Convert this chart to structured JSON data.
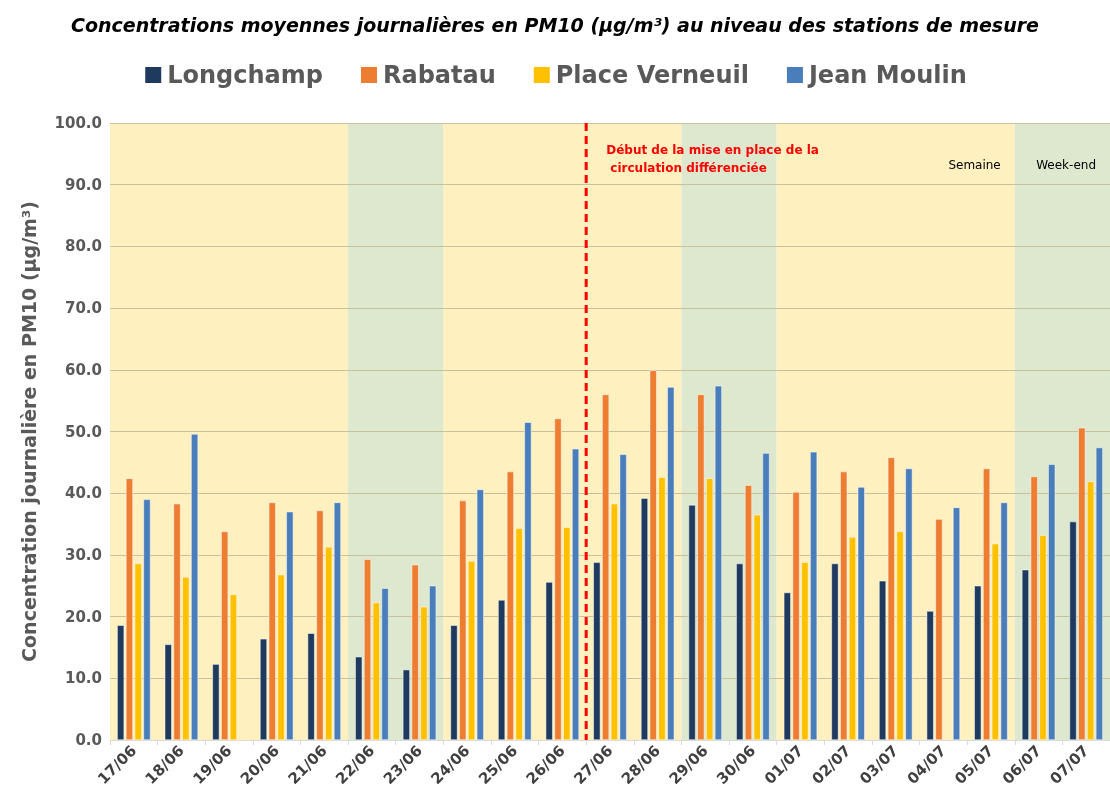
{
  "chart_data": {
    "type": "bar",
    "title": "Concentrations moyennes journalières en PM10 (µg/m³) au niveau des stations de mesure",
    "ylabel": "Concentration journalière en PM10 (µg/m³)",
    "categories": [
      "17/06",
      "18/06",
      "19/06",
      "20/06",
      "21/06",
      "22/06",
      "23/06",
      "24/06",
      "25/06",
      "26/06",
      "27/06",
      "28/06",
      "29/06",
      "30/06",
      "01/07",
      "02/07",
      "03/07",
      "04/07",
      "05/07",
      "06/07",
      "07/07"
    ],
    "series": [
      {
        "name": "Longchamp",
        "color": "#1f3a5f",
        "values": [
          18.6,
          15.5,
          12.3,
          16.4,
          17.3,
          13.5,
          11.4,
          18.6,
          22.7,
          25.6,
          28.8,
          39.2,
          38.1,
          28.6,
          23.9,
          28.6,
          25.8,
          20.9,
          25.0,
          27.6,
          35.4
        ]
      },
      {
        "name": "Rabatau",
        "color": "#ed7d31",
        "values": [
          42.4,
          38.3,
          33.8,
          38.5,
          37.2,
          29.3,
          28.4,
          38.8,
          43.5,
          52.1,
          56.0,
          59.9,
          56.0,
          41.3,
          40.2,
          43.5,
          45.8,
          35.8,
          44.0,
          42.7,
          50.6
        ]
      },
      {
        "name": "Place Verneuil",
        "color": "#ffc000",
        "values": [
          28.6,
          26.4,
          23.6,
          26.8,
          31.3,
          22.3,
          21.6,
          29.0,
          34.3,
          34.5,
          38.3,
          42.6,
          42.4,
          36.5,
          28.8,
          32.9,
          33.8,
          null,
          31.8,
          33.2,
          41.9
        ]
      },
      {
        "name": "Jean Moulin",
        "color": "#4a7ebb",
        "values": [
          39.0,
          49.6,
          null,
          37.0,
          38.5,
          24.6,
          25.0,
          40.6,
          51.5,
          47.2,
          46.3,
          57.2,
          57.4,
          46.5,
          46.7,
          41.0,
          44.0,
          37.7,
          38.5,
          44.7,
          47.4
        ]
      }
    ],
    "ylim": [
      0,
      100
    ],
    "yticks": [
      {
        "value": 0,
        "label": "0.0"
      },
      {
        "value": 10,
        "label": "10.0"
      },
      {
        "value": 20,
        "label": "20.0"
      },
      {
        "value": 30,
        "label": "30.0"
      },
      {
        "value": 40,
        "label": "40.0"
      },
      {
        "value": 50,
        "label": "50.0"
      },
      {
        "value": 60,
        "label": "60.0"
      },
      {
        "value": 70,
        "label": "70.0"
      },
      {
        "value": 80,
        "label": "80.0"
      },
      {
        "value": 90,
        "label": "90.0"
      },
      {
        "value": 100,
        "label": "100.0"
      }
    ],
    "grid": "y",
    "legend": "top",
    "bands": [
      {
        "axis": "x",
        "from": "17/06",
        "to": "21/06",
        "color": "#fff0c0"
      },
      {
        "axis": "x",
        "from": "22/06",
        "to": "23/06",
        "color": "#dde8cf"
      },
      {
        "axis": "x",
        "from": "24/06",
        "to": "28/06",
        "color": "#fff0c0"
      },
      {
        "axis": "x",
        "from": "29/06",
        "to": "30/06",
        "color": "#dde8cf"
      },
      {
        "axis": "x",
        "from": "01/07",
        "to": "05/07",
        "label": "Semaine",
        "color": "#fff0c0"
      },
      {
        "axis": "x",
        "from": "06/07",
        "to": "07/07",
        "label": "Week-end",
        "color": "#dde8cf"
      }
    ],
    "ref_lines": [
      {
        "axis": "x",
        "value": "27/06",
        "label": "Début de la mise en place de la circulation différenciée",
        "color": "#ff0000",
        "line_style": "dashed"
      }
    ]
  }
}
